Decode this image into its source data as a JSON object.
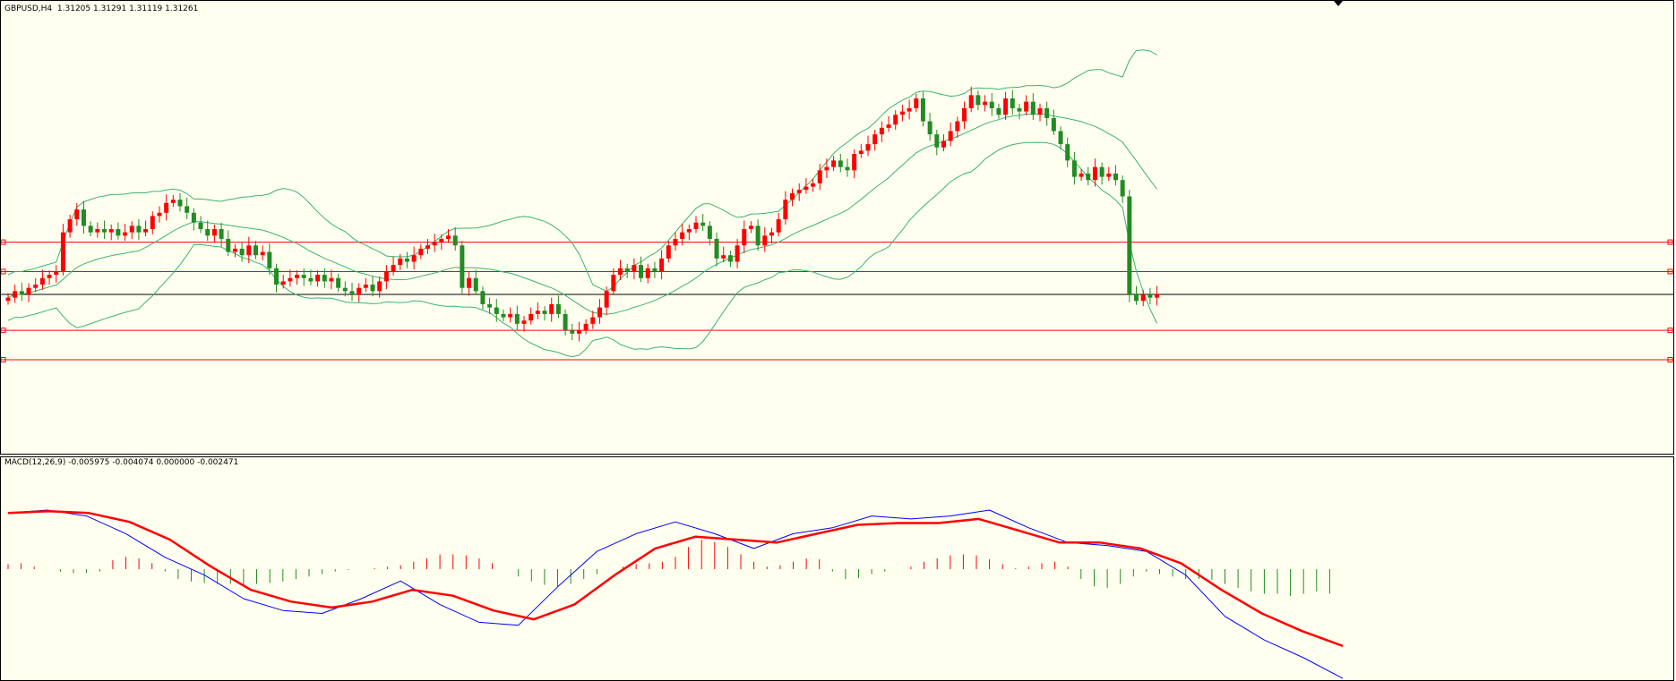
{
  "header": {
    "symbol_timeframe": "GBPUSD,H4",
    "ohlc": "1.31205 1.31291 1.31119 1.31261"
  },
  "macd_panel": {
    "label": "MACD(12,26,9) -0.005975 -0.004074 0.000000 -0.002471"
  },
  "colors": {
    "background": "#fffff0",
    "bull_candle": "#ff0000",
    "bear_candle": "#228b22",
    "bollinger": "#3cb371",
    "hline": "#ff0000",
    "current_price_line": "#000000",
    "macd_line": "#0000ff",
    "signal_line": "#ff0000",
    "hist_positive": "#ff0000",
    "hist_negative": "#228b22"
  },
  "chart_data": [
    {
      "type": "candlestick",
      "symbol": "GBPUSD",
      "timeframe": "H4",
      "indicators": [
        "Bollinger Bands"
      ],
      "y_relative_levels": [
        -1.0,
        -0.55,
        0.0,
        0.35,
        0.8
      ],
      "closes": [
        -0.05,
        0.05,
        0.0,
        0.1,
        0.15,
        0.25,
        0.3,
        0.35,
        0.95,
        1.15,
        1.3,
        1.05,
        0.95,
        1.0,
        0.95,
        1.0,
        0.9,
        0.95,
        1.05,
        0.95,
        1.0,
        1.2,
        1.25,
        1.4,
        1.45,
        1.35,
        1.25,
        1.1,
        1.0,
        0.9,
        1.0,
        0.85,
        0.65,
        0.7,
        0.6,
        0.75,
        0.6,
        0.65,
        0.4,
        0.15,
        0.2,
        0.25,
        0.3,
        0.25,
        0.2,
        0.3,
        0.2,
        0.25,
        0.1,
        0.05,
        0.0,
        0.1,
        0.15,
        0.05,
        0.2,
        0.35,
        0.45,
        0.55,
        0.5,
        0.6,
        0.7,
        0.75,
        0.8,
        0.85,
        0.9,
        0.75,
        0.1,
        0.25,
        0.05,
        -0.15,
        -0.2,
        -0.3,
        -0.35,
        -0.3,
        -0.45,
        -0.4,
        -0.3,
        -0.25,
        -0.3,
        -0.15,
        -0.3,
        -0.55,
        -0.6,
        -0.55,
        -0.45,
        -0.35,
        -0.2,
        0.05,
        0.3,
        0.4,
        0.35,
        0.45,
        0.25,
        0.4,
        0.35,
        0.55,
        0.75,
        0.85,
        0.95,
        1.0,
        1.1,
        1.05,
        0.85,
        0.55,
        0.6,
        0.5,
        0.75,
        1.0,
        1.05,
        0.75,
        0.9,
        0.95,
        1.15,
        1.45,
        1.55,
        1.6,
        1.65,
        1.7,
        1.9,
        1.95,
        2.05,
        1.95,
        1.9,
        2.15,
        2.2,
        2.3,
        2.45,
        2.55,
        2.6,
        2.75,
        2.8,
        2.85,
        3.0,
        2.65,
        2.45,
        2.25,
        2.35,
        2.5,
        2.65,
        2.85,
        3.05,
        2.9,
        2.95,
        2.85,
        2.75,
        3.0,
        2.85,
        2.8,
        2.95,
        2.75,
        2.85,
        2.7,
        2.5,
        2.3,
        2.05,
        1.8,
        1.85,
        1.75,
        1.95,
        1.8,
        1.85,
        1.75,
        1.5,
        0.0,
        -0.1,
        0.0,
        -0.05,
        0.0
      ],
      "annotations": [
        "horizontal levels (red)",
        "current price line (black)"
      ]
    },
    {
      "type": "macd",
      "params": [
        12,
        26,
        9
      ],
      "series": [
        {
          "values": [
            0.95,
            1.0,
            0.9,
            0.6,
            0.2,
            -0.1,
            -0.5,
            -0.7,
            -0.75,
            -0.5,
            -0.2,
            -0.6,
            -0.9,
            -0.95,
            -0.3,
            0.3,
            0.6,
            0.8,
            0.6,
            0.35,
            0.6,
            0.7,
            0.9,
            0.85,
            0.9,
            1.0,
            0.7,
            0.45,
            0.4,
            0.3,
            -0.1,
            -0.8,
            -1.2,
            -1.5,
            -1.85
          ]
        },
        {
          "values": [
            0.95,
            0.98,
            0.95,
            0.8,
            0.5,
            0.05,
            -0.35,
            -0.55,
            -0.65,
            -0.55,
            -0.35,
            -0.45,
            -0.7,
            -0.85,
            -0.6,
            -0.1,
            0.35,
            0.55,
            0.5,
            0.45,
            0.6,
            0.75,
            0.78,
            0.78,
            0.85,
            0.65,
            0.45,
            0.45,
            0.35,
            0.1,
            -0.35,
            -0.75,
            -1.05,
            -1.3
          ]
        }
      ],
      "histogram": [
        0.1,
        0.12,
        0.05,
        0.0,
        -0.05,
        -0.08,
        -0.08,
        -0.05,
        0.18,
        0.25,
        0.22,
        0.12,
        -0.05,
        -0.2,
        -0.25,
        -0.28,
        -0.3,
        -0.3,
        -0.32,
        -0.3,
        -0.28,
        -0.25,
        -0.2,
        -0.15,
        -0.1,
        -0.05,
        -0.02,
        0.0,
        0.02,
        0.05,
        0.08,
        0.15,
        0.22,
        0.3,
        0.3,
        0.28,
        0.22,
        0.12,
        0.0,
        -0.15,
        -0.25,
        -0.32,
        -0.35,
        -0.3,
        -0.2,
        -0.1,
        0.0,
        0.05,
        0.1,
        0.12,
        0.15,
        0.25,
        0.45,
        0.6,
        0.55,
        0.45,
        0.3,
        0.15,
        0.05,
        0.08,
        0.15,
        0.22,
        0.2,
        -0.05,
        -0.2,
        -0.18,
        -0.1,
        -0.05,
        0.0,
        0.05,
        0.15,
        0.22,
        0.28,
        0.3,
        0.28,
        0.2,
        0.1,
        0.02,
        0.05,
        0.12,
        0.15,
        0.05,
        -0.2,
        -0.35,
        -0.38,
        -0.3,
        -0.15,
        -0.05,
        -0.1,
        -0.15,
        -0.2,
        -0.2,
        -0.22,
        -0.3,
        -0.38,
        -0.45,
        -0.5,
        -0.5,
        -0.55,
        -0.5,
        -0.45,
        -0.5
      ]
    }
  ]
}
